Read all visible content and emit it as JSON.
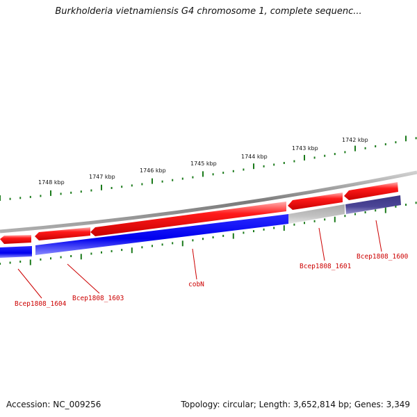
{
  "title": "Burkholderia vietnamiensis G4 chromosome 1, complete sequenc...",
  "footer": {
    "accession": "Accession: NC_009256",
    "topology": "Topology: circular; Length: 3,652,814 bp; Genes: 3,349"
  },
  "scale_labels": [
    "1748 kbp",
    "1747 kbp",
    "1746 kbp",
    "1745 kbp",
    "1744 kbp",
    "1743 kbp",
    "1742 kbp"
  ],
  "gene_labels": [
    "Bcep1808_1604",
    "Bcep1808_1603",
    "cobN",
    "Bcep1808_1601",
    "Bcep1808_1600"
  ],
  "colors": {
    "forward_cds": "#ff0000",
    "reverse_cds": "#0000ff",
    "grey_feature": "#c0c0c0",
    "purple_feature": "#4b4596",
    "backbone": "#808080",
    "ticks": "#1a7a1a",
    "gene_label": "#cc0000"
  }
}
